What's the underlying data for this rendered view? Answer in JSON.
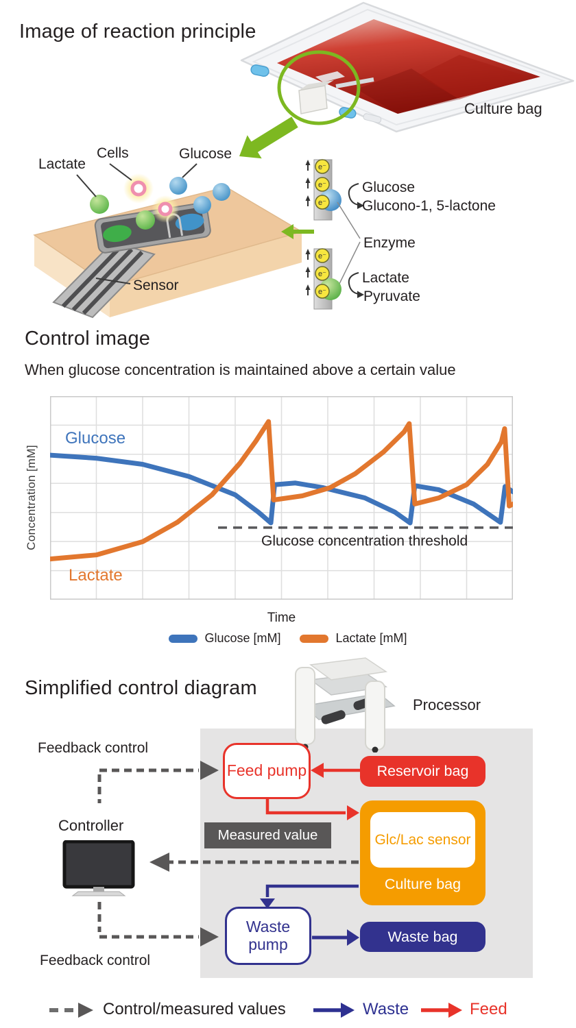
{
  "reaction_principle": {
    "title": "Image of reaction principle",
    "culture_bag_label": "Culture bag",
    "labels": {
      "lactate": "Lactate",
      "cells": "Cells",
      "glucose": "Glucose",
      "sensor": "Sensor"
    },
    "enzyme_detail": {
      "electron": "e⁻",
      "glucose_substrate": "Glucose",
      "glucose_product": "Glucono-1, 5-lactone",
      "enzyme": "Enzyme",
      "lactate_substrate": "Lactate",
      "lactate_product": "Pyruvate"
    }
  },
  "control_image": {
    "title": "Control image",
    "subtitle": "When glucose concentration is maintained above a certain value",
    "ylabel": "Concentration [mM]",
    "xlabel": "Time",
    "glucose_curve_label": "Glucose",
    "lactate_curve_label": "Lactate",
    "threshold_label": "Glucose concentration threshold",
    "legend": {
      "glucose": "Glucose [mM]",
      "lactate": "Lactate [mM]"
    }
  },
  "chart_data": {
    "type": "line",
    "title": "Control image",
    "subtitle": "When glucose concentration is maintained above a certain value",
    "xlabel": "Time",
    "ylabel": "Concentration [mM]",
    "x_range": [
      0,
      100
    ],
    "y_range": [
      0,
      100
    ],
    "axes_ticks": "none (qualitative sketch)",
    "grid": {
      "on": true,
      "columns": 10,
      "rows": 7,
      "color": "#dedede"
    },
    "legend_position": "bottom",
    "threshold": {
      "label": "Glucose concentration threshold",
      "y": 35.4,
      "x_start": 36.3,
      "x_end": 100.5,
      "style": "dashed",
      "color": "#58585a"
    },
    "series": [
      {
        "name": "Glucose [mM]",
        "color": "#3e74bb",
        "points": [
          [
            0,
            71
          ],
          [
            10,
            69.5
          ],
          [
            20,
            66.5
          ],
          [
            30,
            60.5
          ],
          [
            40,
            51.5
          ],
          [
            45,
            43
          ],
          [
            47.7,
            37.7
          ],
          [
            48.5,
            56.5
          ],
          [
            53,
            57.3
          ],
          [
            59,
            55
          ],
          [
            68,
            50
          ],
          [
            74.5,
            43
          ],
          [
            77.8,
            37.7
          ],
          [
            78.8,
            56
          ],
          [
            84,
            54
          ],
          [
            91.5,
            47
          ],
          [
            97.3,
            38
          ],
          [
            98.3,
            55.6
          ],
          [
            100,
            53
          ]
        ]
      },
      {
        "name": "Lactate [mM]",
        "color": "#e2772e",
        "points": [
          [
            0,
            20
          ],
          [
            10,
            22
          ],
          [
            20,
            28.5
          ],
          [
            27.5,
            38
          ],
          [
            35,
            51.5
          ],
          [
            41,
            67
          ],
          [
            44.5,
            78
          ],
          [
            47.2,
            87.5
          ],
          [
            48.3,
            49
          ],
          [
            54.5,
            51
          ],
          [
            60.5,
            55
          ],
          [
            66,
            62
          ],
          [
            72,
            72.5
          ],
          [
            76.5,
            82.5
          ],
          [
            77.6,
            86.5
          ],
          [
            78.8,
            47
          ],
          [
            84,
            50
          ],
          [
            90,
            56.5
          ],
          [
            94.5,
            66.5
          ],
          [
            97.5,
            77.5
          ],
          [
            98.2,
            84
          ],
          [
            99.2,
            46
          ],
          [
            100,
            47
          ]
        ]
      }
    ]
  },
  "control_diagram": {
    "title": "Simplified control diagram",
    "processor": "Processor",
    "controller": "Controller",
    "feedback_control_top": "Feedback control",
    "feedback_control_bottom": "Feedback control",
    "feed_pump": "Feed pump",
    "reservoir_bag": "Reservoir bag",
    "measured_value": "Measured value",
    "glc_lac_sensor": "Glc/Lac sensor",
    "culture_bag": "Culture bag",
    "waste_pump": "Waste pump",
    "waste_bag": "Waste bag",
    "legend": {
      "control": "Control/measured values",
      "waste": "Waste",
      "feed": "Feed"
    }
  },
  "colors": {
    "feed_red": "#e8332a",
    "waste_navy": "#32328e",
    "waste_text_navy": "#2e3191",
    "culture_orange": "#f59c00",
    "glucose_blue": "#3e74bb",
    "lactate_orange": "#e2772e",
    "control_gray": "#595757",
    "panel_gray": "#e5e4e4",
    "accent_green": "#7db821"
  }
}
